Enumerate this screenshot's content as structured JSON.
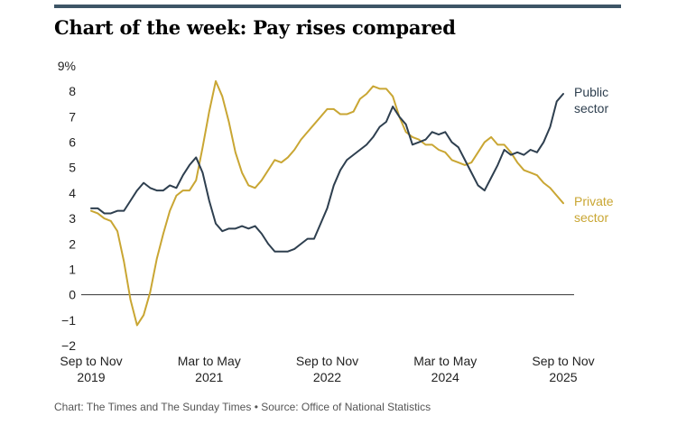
{
  "header": {
    "title": "Chart of the week: Pay rises compared"
  },
  "footer": {
    "credit": "Chart: The Times and The Sunday Times",
    "separator": "•",
    "source": "Source: Office of National Statistics"
  },
  "colors": {
    "public": "#2e3f4f",
    "private": "#c9a633",
    "topbar": "#3d5566"
  },
  "chart_data": {
    "type": "line",
    "title": "Chart of the week: Pay rises compared",
    "xlabel": "",
    "ylabel": "",
    "ylim": [
      -2,
      9
    ],
    "y_ticks": [
      "9%",
      "8",
      "7",
      "6",
      "5",
      "4",
      "3",
      "2",
      "1",
      "0",
      "−1",
      "−2"
    ],
    "y_tick_values": [
      9,
      8,
      7,
      6,
      5,
      4,
      3,
      2,
      1,
      0,
      -1,
      -2
    ],
    "x_ticks": [
      {
        "line1": "Sep to Nov",
        "line2": "2019",
        "index": 0
      },
      {
        "line1": "Mar to May",
        "line2": "2021",
        "index": 18
      },
      {
        "line1": "Sep to Nov",
        "line2": "2022",
        "index": 36
      },
      {
        "line1": "Mar to May",
        "line2": "2024",
        "index": 54
      },
      {
        "line1": "Sep to Nov",
        "line2": "2025",
        "index": 72
      }
    ],
    "x_count": 73,
    "series": [
      {
        "name": "Public sector",
        "label_line1": "Public",
        "label_line2": "sector",
        "values": [
          3.4,
          3.4,
          3.2,
          3.2,
          3.3,
          3.3,
          3.7,
          4.1,
          4.4,
          4.2,
          4.1,
          4.1,
          4.3,
          4.2,
          4.7,
          5.1,
          5.4,
          4.8,
          3.7,
          2.8,
          2.5,
          2.6,
          2.6,
          2.7,
          2.6,
          2.7,
          2.4,
          2.0,
          1.7,
          1.7,
          1.7,
          1.8,
          2.0,
          2.2,
          2.2,
          2.8,
          3.4,
          4.3,
          4.9,
          5.3,
          5.5,
          5.7,
          5.9,
          6.2,
          6.6,
          6.8,
          7.4,
          7.0,
          6.7,
          5.9,
          6.0,
          6.1,
          6.4,
          6.3,
          6.4,
          6.0,
          5.8,
          5.3,
          4.8,
          4.3,
          4.1,
          4.6,
          5.1,
          5.7,
          5.5,
          5.6,
          5.5,
          5.7,
          5.6,
          6.0,
          6.6,
          7.6,
          7.9
        ]
      },
      {
        "name": "Private sector",
        "label_line1": "Private",
        "label_line2": "sector",
        "values": [
          3.3,
          3.2,
          3.0,
          2.9,
          2.5,
          1.3,
          -0.2,
          -1.2,
          -0.8,
          0.1,
          1.4,
          2.4,
          3.3,
          3.9,
          4.1,
          4.1,
          4.5,
          5.8,
          7.2,
          8.4,
          7.8,
          6.8,
          5.6,
          4.8,
          4.3,
          4.2,
          4.5,
          4.9,
          5.3,
          5.2,
          5.4,
          5.7,
          6.1,
          6.4,
          6.7,
          7.0,
          7.3,
          7.3,
          7.1,
          7.1,
          7.2,
          7.7,
          7.9,
          8.2,
          8.1,
          8.1,
          7.8,
          7.0,
          6.4,
          6.2,
          6.1,
          5.9,
          5.9,
          5.7,
          5.6,
          5.3,
          5.2,
          5.1,
          5.2,
          5.6,
          6.0,
          6.2,
          5.9,
          5.9,
          5.6,
          5.2,
          4.9,
          4.8,
          4.7,
          4.4,
          4.2,
          3.9,
          3.6
        ]
      }
    ],
    "grid": false,
    "zero_line": true
  }
}
